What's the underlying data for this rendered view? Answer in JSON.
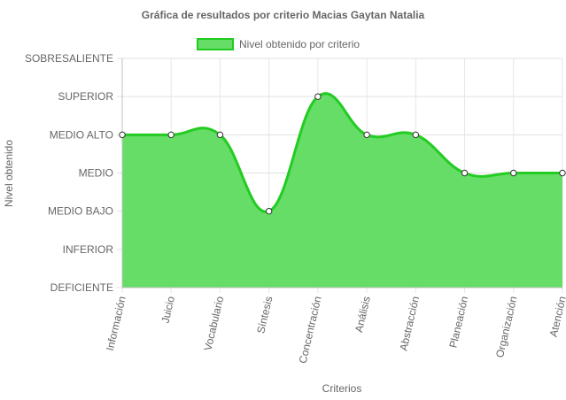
{
  "chart_data": {
    "type": "line",
    "title": "Gráfica de resultados por criterio Macias Gaytan Natalia",
    "xlabel": "Criterios",
    "ylabel": "Nivel obtenido",
    "categories": [
      "Información",
      "Juicio",
      "Vocabulario",
      "Síntesis",
      "Concentración",
      "Análisis",
      "Abstracción",
      "Planeación",
      "Organización",
      "Atención"
    ],
    "y_levels": [
      "DEFICIENTE",
      "INFERIOR",
      "MEDIO BAJO",
      "MEDIO",
      "MEDIO ALTO",
      "SUPERIOR",
      "SOBRESALIENTE"
    ],
    "ylim": [
      0,
      6
    ],
    "series": [
      {
        "name": "Nivel obtenido por criterio",
        "values": [
          4,
          4,
          4,
          2,
          5,
          4,
          4,
          3,
          3,
          3
        ],
        "fill_color": "#66dd66",
        "line_color": "#22cc22"
      }
    ],
    "grid": true,
    "legend_position": "top",
    "area_filled": true,
    "smooth": true
  }
}
